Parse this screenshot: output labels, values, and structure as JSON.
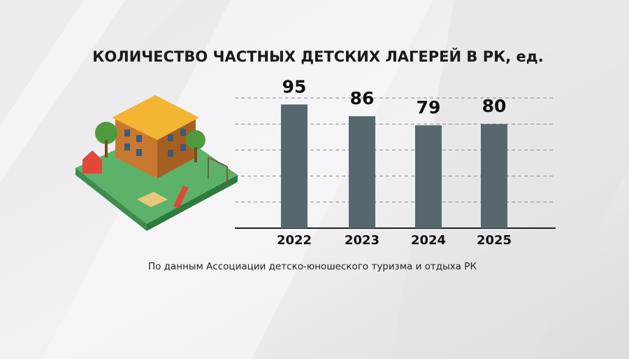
{
  "chart_data": {
    "type": "bar",
    "title": "КОЛИЧЕСТВО ЧАСТНЫХ ДЕТСКИХ ЛАГЕРЕЙ  В РК, ед.",
    "categories": [
      "2022",
      "2023",
      "2024",
      "2025"
    ],
    "values": [
      95,
      86,
      79,
      80
    ],
    "color": "#56686b",
    "ylim": [
      0,
      100
    ],
    "yticks": [
      20,
      40,
      60,
      80,
      100
    ],
    "grid": true,
    "source": "По данным Ассоциации детско-юношеского туризма и отдыха РК"
  }
}
